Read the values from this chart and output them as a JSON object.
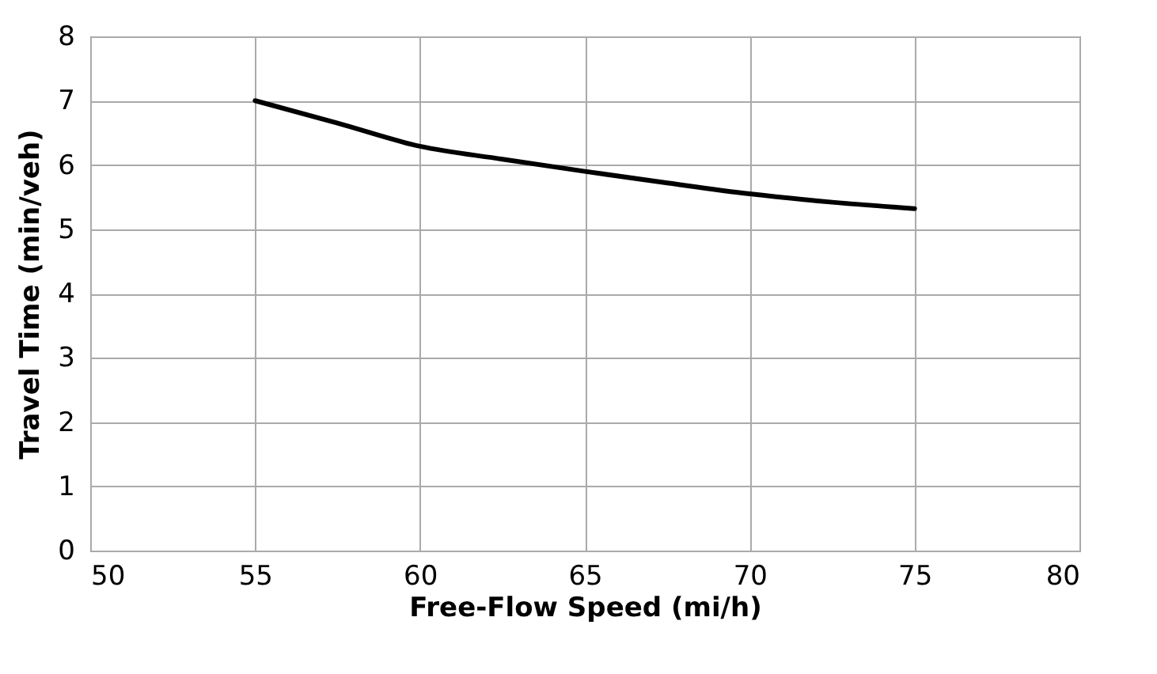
{
  "chart_data": {
    "type": "line",
    "xlabel": "Free-Flow Speed (mi/h)",
    "ylabel": "Travel Time (min/veh)",
    "x": [
      55,
      57.5,
      60,
      62.5,
      65,
      67.5,
      70,
      72.5,
      75
    ],
    "series": [
      {
        "color": "#000000",
        "values": [
          7.0,
          6.65,
          6.29,
          6.09,
          5.9,
          5.72,
          5.55,
          5.42,
          5.32
        ]
      }
    ],
    "xlim": [
      50,
      80
    ],
    "xticks": [
      50,
      55,
      60,
      65,
      70,
      75,
      80
    ],
    "ylim": [
      0,
      8
    ],
    "yticks": [
      0,
      1,
      2,
      3,
      4,
      5,
      6,
      7,
      8
    ],
    "grid": true,
    "legend": false,
    "marker": "none",
    "line_style": "solid"
  }
}
